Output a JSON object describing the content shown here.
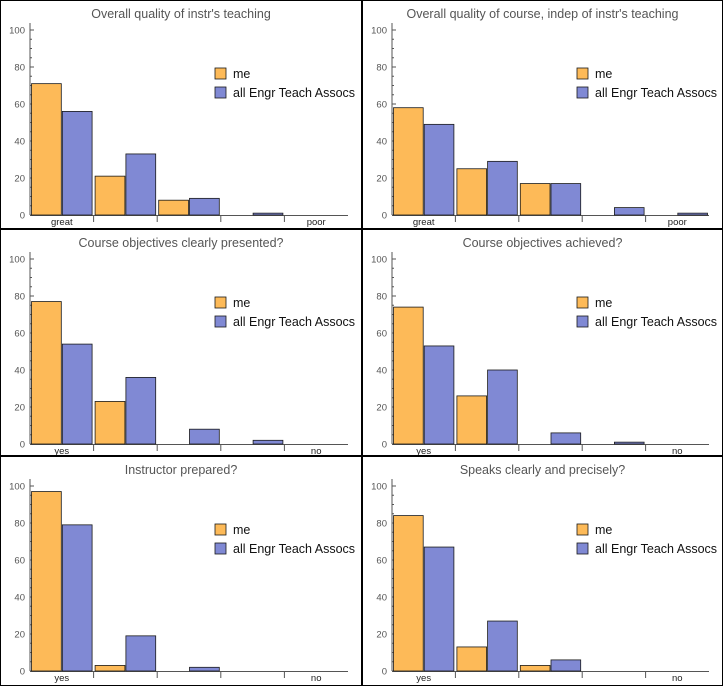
{
  "colors": {
    "me": "#FDBA58",
    "all": "#8089D4",
    "axis": "#555555",
    "title": "#555555"
  },
  "chart_data": [
    {
      "type": "bar",
      "title": "Overall quality of instr's teaching",
      "categories": [
        "great",
        "",
        "",
        "",
        "poor"
      ],
      "ylim": [
        0,
        100
      ],
      "yticks": [
        0,
        20,
        40,
        60,
        80,
        100
      ],
      "legend": "top-right",
      "series": [
        {
          "name": "me",
          "values": [
            71,
            21,
            8,
            0,
            0
          ]
        },
        {
          "name": "all Engr Teach Assocs",
          "values": [
            56,
            33,
            9,
            1,
            0
          ]
        }
      ]
    },
    {
      "type": "bar",
      "title": "Overall quality of course, indep of instr's teaching",
      "categories": [
        "great",
        "",
        "",
        "",
        "poor"
      ],
      "ylim": [
        0,
        100
      ],
      "yticks": [
        0,
        20,
        40,
        60,
        80,
        100
      ],
      "legend": "top-right",
      "series": [
        {
          "name": "me",
          "values": [
            58,
            25,
            17,
            0,
            0
          ]
        },
        {
          "name": "all Engr Teach Assocs",
          "values": [
            49,
            29,
            17,
            4,
            1
          ]
        }
      ]
    },
    {
      "type": "bar",
      "title": "Course objectives clearly presented?",
      "categories": [
        "yes",
        "",
        "",
        "",
        "no"
      ],
      "ylim": [
        0,
        100
      ],
      "yticks": [
        0,
        20,
        40,
        60,
        80,
        100
      ],
      "legend": "top-right",
      "series": [
        {
          "name": "me",
          "values": [
            77,
            23,
            0,
            0,
            0
          ]
        },
        {
          "name": "all Engr Teach Assocs",
          "values": [
            54,
            36,
            8,
            2,
            0
          ]
        }
      ]
    },
    {
      "type": "bar",
      "title": "Course objectives achieved?",
      "categories": [
        "yes",
        "",
        "",
        "",
        "no"
      ],
      "ylim": [
        0,
        100
      ],
      "yticks": [
        0,
        20,
        40,
        60,
        80,
        100
      ],
      "legend": "top-right",
      "series": [
        {
          "name": "me",
          "values": [
            74,
            26,
            0,
            0,
            0
          ]
        },
        {
          "name": "all Engr Teach Assocs",
          "values": [
            53,
            40,
            6,
            1,
            0
          ]
        }
      ]
    },
    {
      "type": "bar",
      "title": "Instructor prepared?",
      "categories": [
        "yes",
        "",
        "",
        "",
        "no"
      ],
      "ylim": [
        0,
        100
      ],
      "yticks": [
        0,
        20,
        40,
        60,
        80,
        100
      ],
      "legend": "top-right",
      "series": [
        {
          "name": "me",
          "values": [
            97,
            3,
            0,
            0,
            0
          ]
        },
        {
          "name": "all Engr Teach Assocs",
          "values": [
            79,
            19,
            2,
            0,
            0
          ]
        }
      ]
    },
    {
      "type": "bar",
      "title": "Speaks clearly and precisely?",
      "categories": [
        "yes",
        "",
        "",
        "",
        "no"
      ],
      "ylim": [
        0,
        100
      ],
      "yticks": [
        0,
        20,
        40,
        60,
        80,
        100
      ],
      "legend": "top-right",
      "series": [
        {
          "name": "me",
          "values": [
            84,
            13,
            3,
            0,
            0
          ]
        },
        {
          "name": "all Engr Teach Assocs",
          "values": [
            67,
            27,
            6,
            0,
            0
          ]
        }
      ]
    }
  ]
}
